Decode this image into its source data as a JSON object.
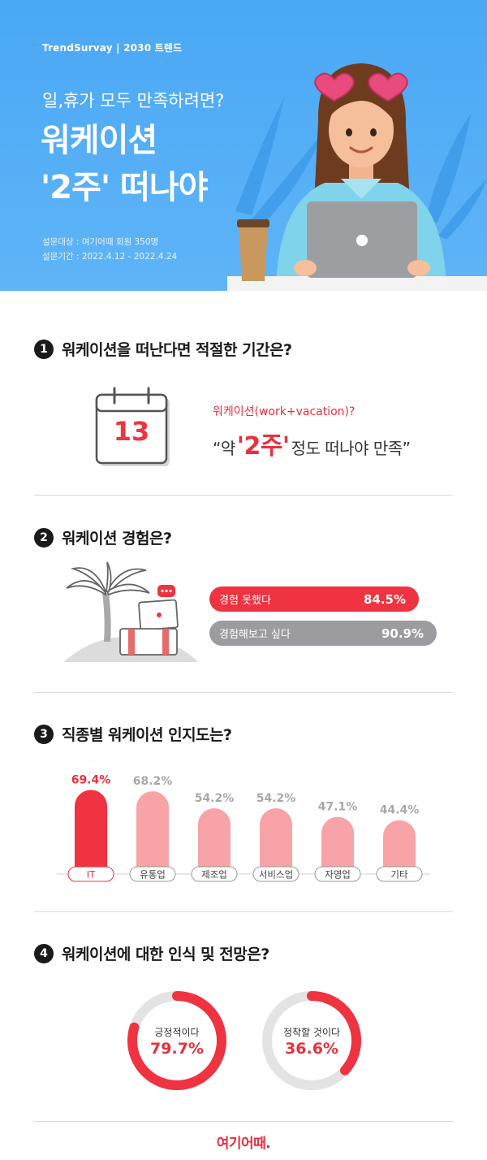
{
  "header": {
    "brand": "TrendSurvay | 2030 트렌드",
    "subtitle": "일,휴가 모두 만족하려면?",
    "title_line1": "워케이션",
    "title_line2": "'2주' 떠나야",
    "meta1": "설문대상 : 여기어때 회원 350명",
    "meta2": "설문기간 : 2022.4.12 - 2022.4.24"
  },
  "q1": {
    "number": "1",
    "question": "워케이션을 떠난다면 적절한 기간은?",
    "calendar_day": "13",
    "caption": "워케이션(work+vacation)?",
    "answer_pre": "“약",
    "answer_highlight": "'2주'",
    "answer_post": "정도 떠나야 만족”"
  },
  "q2": {
    "number": "2",
    "question": "워케이션 경험은?",
    "bars": [
      {
        "label": "경험 못했다",
        "value": "84.5%",
        "color": "#ef3340"
      },
      {
        "label": "경험해보고 싶다",
        "value": "90.9%",
        "color": "#9c9ca0"
      }
    ]
  },
  "q3": {
    "number": "3",
    "question": "직종별 워케이션 인지도는?"
  },
  "chart_data": {
    "type": "bar",
    "categories": [
      "IT",
      "유통업",
      "제조업",
      "서비스업",
      "자영업",
      "기타"
    ],
    "values": [
      69.4,
      68.2,
      54.2,
      54.2,
      47.1,
      44.4
    ],
    "value_labels": [
      "69.4%",
      "68.2%",
      "54.2%",
      "54.2%",
      "47.1%",
      "44.4%"
    ],
    "highlight_index": 0,
    "colors": {
      "highlight": "#ef3340",
      "normal": "#f7a3a8",
      "label_highlight": "#e8303c",
      "label_normal": "#a8a8a8"
    },
    "ylim": [
      0,
      75
    ],
    "grid": false,
    "title": "",
    "xlabel": "",
    "ylabel": ""
  },
  "q4": {
    "number": "4",
    "question": "워케이션에 대한 인식 및 전망은?",
    "donuts": [
      {
        "label": "긍정적이다",
        "value": "79.7%",
        "fraction": 0.797
      },
      {
        "label": "정착할 것이다",
        "value": "36.6%",
        "fraction": 0.366
      }
    ]
  },
  "footer": {
    "logo": "여기어때."
  },
  "colors": {
    "accent": "#ef3340",
    "hero_blue": "#4aa8f5",
    "track_grey": "#e3e3e3"
  }
}
